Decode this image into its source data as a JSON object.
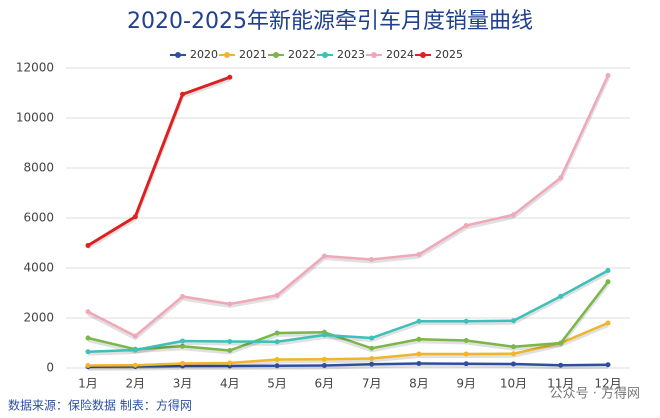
{
  "chart_data": {
    "type": "line",
    "title": "2020-2025年新能源牵引车月度销量曲线",
    "categories": [
      "1月",
      "2月",
      "3月",
      "4月",
      "5月",
      "6月",
      "7月",
      "8月",
      "9月",
      "10月",
      "11月",
      "12月"
    ],
    "series": [
      {
        "name": "2020",
        "color": "#2e4fa0",
        "values": [
          50,
          60,
          80,
          80,
          90,
          100,
          150,
          180,
          170,
          160,
          110,
          130
        ]
      },
      {
        "name": "2021",
        "color": "#f0b52a",
        "values": [
          100,
          110,
          180,
          200,
          340,
          350,
          380,
          560,
          560,
          570,
          1000,
          1800
        ]
      },
      {
        "name": "2022",
        "color": "#7ab648",
        "values": [
          1200,
          750,
          870,
          700,
          1400,
          1430,
          790,
          1150,
          1100,
          850,
          1000,
          3450
        ]
      },
      {
        "name": "2023",
        "color": "#3cc0b8",
        "values": [
          650,
          720,
          1080,
          1060,
          1050,
          1320,
          1200,
          1870,
          1870,
          1890,
          2870,
          3900
        ]
      },
      {
        "name": "2024",
        "color": "#f0a8b8",
        "values": [
          2250,
          1280,
          2860,
          2560,
          2910,
          4480,
          4340,
          4540,
          5700,
          6130,
          7610,
          11700
        ]
      },
      {
        "name": "2025",
        "color": "#e02020",
        "values": [
          4900,
          6050,
          10950,
          11630,
          null,
          null,
          null,
          null,
          null,
          null,
          null,
          null
        ]
      }
    ],
    "ylim": [
      0,
      12000
    ],
    "yticks": [
      0,
      2000,
      4000,
      6000,
      8000,
      10000,
      12000
    ],
    "grid": true,
    "source": "数据来源：保险数据  制表：方得网",
    "watermark": "公众号 · 方得网"
  }
}
